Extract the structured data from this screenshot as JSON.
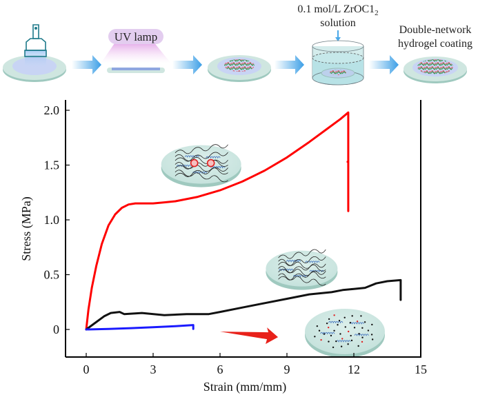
{
  "scheme": {
    "steps": [
      {
        "name": "brush-coating",
        "label": ""
      },
      {
        "name": "uv-curing",
        "label": "UV lamp"
      },
      {
        "name": "first-network",
        "label": ""
      },
      {
        "name": "zrocl2-soak",
        "label_line1": "0.1 mol/L ZrOC1",
        "label_sub": "2",
        "label_line2": "solution"
      },
      {
        "name": "final-coating",
        "label_line1": "Double-network",
        "label_line2": "hydrogel coating"
      }
    ],
    "colors": {
      "arrow": "#4aa8e8",
      "plate": "#cfe6e0",
      "plate_edge": "#9fc9bf",
      "gel": "#c8d4f4",
      "uv": "#e6b8e8"
    }
  },
  "chart_data": {
    "type": "line",
    "title": "",
    "xlabel": "Strain (mm/mm)",
    "ylabel": "Stress (MPa)",
    "xlim": [
      -1.2,
      15
    ],
    "ylim": [
      -0.25,
      2.05
    ],
    "xticks": [
      0,
      3,
      6,
      9,
      12,
      15
    ],
    "xtick_labels": [
      "0",
      "3",
      "6",
      "9",
      "12",
      "15"
    ],
    "yticks": [
      0,
      0.5,
      1.0,
      1.5,
      2.0
    ],
    "ytick_labels": [
      "0",
      "0.5",
      "1.0",
      "1.5",
      "2.0"
    ],
    "grid": false,
    "legend": "none",
    "series": [
      {
        "name": "double-network",
        "color": "#ff0000",
        "x": [
          0,
          0.1,
          0.25,
          0.45,
          0.7,
          1.0,
          1.3,
          1.6,
          1.9,
          2.2,
          2.6,
          3.0,
          3.5,
          4.0,
          5.0,
          6.0,
          7.0,
          8.0,
          9.0,
          10.0,
          10.8,
          11.4,
          11.75,
          11.75,
          11.72,
          11.75,
          11.75
        ],
        "y": [
          0,
          0.18,
          0.38,
          0.58,
          0.78,
          0.95,
          1.05,
          1.11,
          1.14,
          1.15,
          1.15,
          1.15,
          1.16,
          1.17,
          1.21,
          1.27,
          1.35,
          1.45,
          1.57,
          1.71,
          1.83,
          1.92,
          1.98,
          1.53,
          1.53,
          1.53,
          1.08
        ]
      },
      {
        "name": "second-network",
        "color": "#111111",
        "x": [
          0,
          0.4,
          0.8,
          1.1,
          1.5,
          1.7,
          2.5,
          3.5,
          4.5,
          5.5,
          6.0,
          7.0,
          8.0,
          9.0,
          10.0,
          10.5,
          11.0,
          11.5,
          12.0,
          12.5,
          13.0,
          13.5,
          14.1,
          14.1
        ],
        "y": [
          0,
          0.06,
          0.12,
          0.15,
          0.16,
          0.14,
          0.15,
          0.13,
          0.14,
          0.14,
          0.16,
          0.2,
          0.24,
          0.28,
          0.32,
          0.33,
          0.34,
          0.36,
          0.37,
          0.38,
          0.42,
          0.44,
          0.45,
          0.27
        ]
      },
      {
        "name": "first-network",
        "color": "#1a1aff",
        "x": [
          0,
          1.0,
          2.0,
          3.0,
          4.0,
          4.8,
          4.8
        ],
        "y": [
          0,
          0.005,
          0.012,
          0.02,
          0.03,
          0.04,
          0.005
        ]
      }
    ],
    "annotations": [
      {
        "name": "red-arrow",
        "from": [
          6.0,
          -0.02
        ],
        "to": [
          8.6,
          -0.07
        ],
        "color": "#e8211a"
      }
    ],
    "insets": [
      {
        "name": "double-network-inset",
        "at_x": 5.0,
        "at_y": 1.6
      },
      {
        "name": "second-network-inset",
        "at_x": 9.6,
        "at_y": 0.65
      },
      {
        "name": "first-network-inset",
        "at_x": 12.0,
        "at_y": 0.0
      }
    ]
  }
}
